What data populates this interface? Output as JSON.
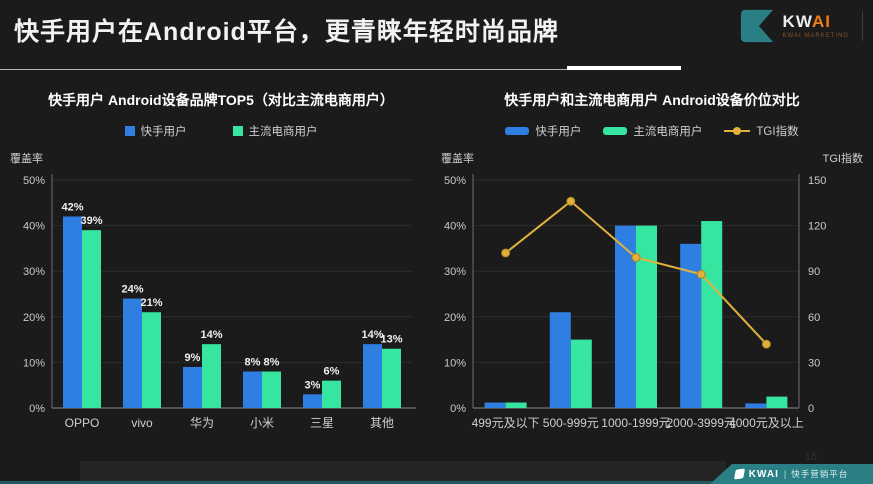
{
  "header": {
    "title": "快手用户在Android平台，更青睐年轻时尚品牌",
    "logo": {
      "kw": "KW",
      "ai": "AI",
      "tagline": "KWAI MARKETING"
    }
  },
  "page_number": "16",
  "colors": {
    "kwai_user_blue": "#2f7fe3",
    "ecom_user_green": "#36e6a0",
    "tgi_line_yellow": "#e2b13c",
    "brand_teal": "#2a7f85"
  },
  "chart_data": [
    {
      "type": "bar",
      "title": "快手用户  Android设备品牌TOP5（对比主流电商用户）",
      "ylabel": "覆盖率",
      "ylim": [
        0,
        50
      ],
      "yticks": [
        "0%",
        "10%",
        "20%",
        "30%",
        "40%",
        "50%"
      ],
      "categories": [
        "OPPO",
        "vivo",
        "华为",
        "小米",
        "三星",
        "其他"
      ],
      "series": [
        {
          "name": "快手用户",
          "type": "bar",
          "color": "#2f7fe3",
          "values": [
            42,
            24,
            9,
            8,
            3,
            14
          ]
        },
        {
          "name": "主流电商用户",
          "type": "bar",
          "color": "#36e6a0",
          "values": [
            39,
            21,
            14,
            8,
            6,
            13
          ]
        }
      ],
      "value_labels": true,
      "value_suffix": "%",
      "grid": true,
      "legend_position": "top"
    },
    {
      "type": "bar+line",
      "title": "快手用户和主流电商用户  Android设备价位对比",
      "ylabel": "覆盖率",
      "ylabel_right": "TGI指数",
      "ylim": [
        0,
        50
      ],
      "ylim_right": [
        0,
        150
      ],
      "yticks": [
        "0%",
        "10%",
        "20%",
        "30%",
        "40%",
        "50%"
      ],
      "yticks_right": [
        "0",
        "30",
        "60",
        "90",
        "120",
        "150"
      ],
      "categories": [
        "499元及以下",
        "500-999元",
        "1000-1999元",
        "2000-3999元",
        "4000元及以上"
      ],
      "series": [
        {
          "name": "快手用户",
          "type": "bar",
          "color": "#2f7fe3",
          "values": [
            1.2,
            21,
            40,
            36,
            1
          ]
        },
        {
          "name": "主流电商用户",
          "type": "bar",
          "color": "#36e6a0",
          "values": [
            1.2,
            15,
            40,
            41,
            2.5
          ]
        },
        {
          "name": "TGI指数",
          "type": "line",
          "axis": "right",
          "color": "#e2b13c",
          "values": [
            102,
            136,
            99,
            88,
            42
          ]
        }
      ],
      "value_labels": false,
      "grid": true,
      "legend_position": "top"
    }
  ],
  "footer": {
    "brand": "KWAI",
    "divider": "|",
    "platform": "快手营销平台"
  }
}
